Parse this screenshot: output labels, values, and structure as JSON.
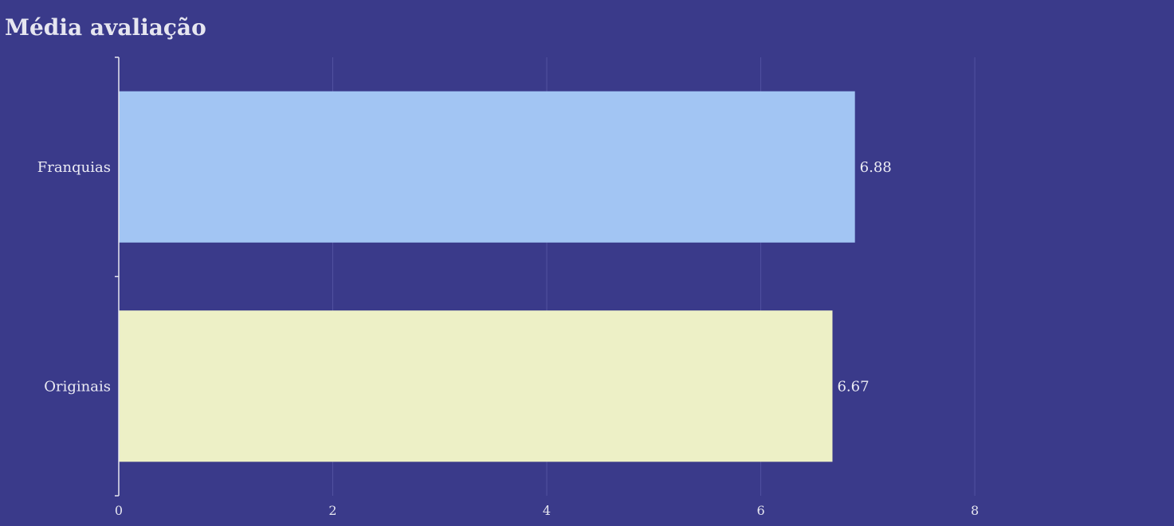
{
  "chart_data": {
    "type": "bar",
    "orientation": "horizontal",
    "title": "Média avaliação",
    "categories": [
      "Franquias",
      "Originais"
    ],
    "values": [
      6.88,
      6.67
    ],
    "data_labels": [
      "6.88",
      "6.67"
    ],
    "colors": [
      "#a2c5f3",
      "#edf0c6"
    ],
    "xlim": [
      0,
      9.4
    ],
    "xticks": [
      0,
      2,
      4,
      6,
      8
    ],
    "xlabel": "",
    "ylabel": "",
    "grid": true,
    "background": "#3a3a8a"
  }
}
